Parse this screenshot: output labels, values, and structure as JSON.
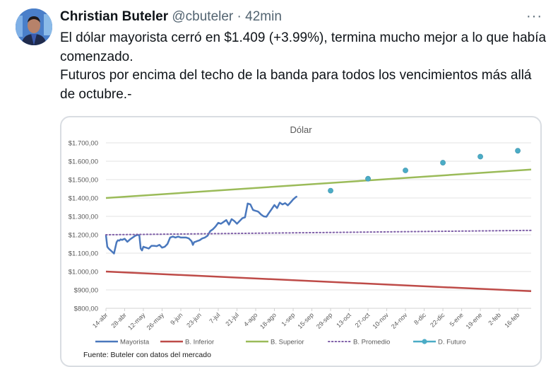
{
  "tweet": {
    "author_name": "Christian Buteler",
    "handle": "@cbuteler",
    "separator": "·",
    "time": "42min",
    "more_label": "···",
    "text_lines": [
      "El dólar mayorista cerró en $1.409 (+3.99%), termina mucho mejor a lo que había comenzado.",
      "Futuros por encima del techo de la banda para todos los vencimientos más allá de octubre.-"
    ]
  },
  "chart_data": {
    "type": "line",
    "title": "Dólar",
    "source": "Fuente: Buteler con datos del mercado",
    "xlabel": "",
    "ylabel": "",
    "ylim": [
      800,
      1700
    ],
    "yticks": [
      800,
      900,
      1000,
      1100,
      1200,
      1300,
      1400,
      1500,
      1600,
      1700
    ],
    "ytick_labels": [
      "$800,00",
      "$900,00",
      "$1.000,00",
      "$1.100,00",
      "$1.200,00",
      "$1.300,00",
      "$1.400,00",
      "$1.500,00",
      "$1.600,00",
      "$1.700,00"
    ],
    "x_unit": "days since 14-abr",
    "xlim": [
      0,
      318
    ],
    "xticks": [
      0,
      14,
      28,
      42,
      56,
      70,
      84,
      98,
      112,
      126,
      140,
      154,
      168,
      182,
      196,
      210,
      224,
      238,
      252,
      266,
      280,
      294,
      308
    ],
    "xtick_labels": [
      "14-abr",
      "28-abr",
      "12-may",
      "26-may",
      "9-jun",
      "23-jun",
      "7-jul",
      "21-jul",
      "4-ago",
      "18-ago",
      "1-sep",
      "15-sep",
      "29-sep",
      "13-oct",
      "27-oct",
      "10-nov",
      "24-nov",
      "8-dic",
      "22-dic",
      "5-ene",
      "19-ene",
      "2-feb",
      "16-feb"
    ],
    "grid": true,
    "legend_position": "bottom",
    "series": [
      {
        "name": "Mayorista",
        "color": "#4a78bd",
        "style": "solid",
        "x": [
          0,
          1,
          2,
          4,
          6,
          8,
          9,
          10,
          11,
          12,
          14,
          16,
          17,
          18,
          20,
          22,
          24,
          25,
          26,
          27,
          28,
          29,
          30,
          32,
          34,
          36,
          38,
          40,
          42,
          44,
          46,
          48,
          50,
          52,
          54,
          56,
          58,
          60,
          62,
          64,
          65,
          66,
          67,
          68,
          70,
          72,
          74,
          76,
          78,
          80,
          82,
          84,
          86,
          88,
          90,
          92,
          94,
          96,
          98,
          100,
          102,
          104,
          106,
          108,
          110,
          112,
          113,
          114,
          116,
          118,
          120,
          122,
          124,
          126,
          128,
          130,
          132,
          134,
          136,
          138,
          140,
          142,
          143
        ],
        "y": [
          1198,
          1135,
          1125,
          1112,
          1098,
          1160,
          1170,
          1168,
          1175,
          1172,
          1178,
          1162,
          1168,
          1175,
          1185,
          1195,
          1200,
          1195,
          1125,
          1115,
          1135,
          1132,
          1130,
          1125,
          1140,
          1140,
          1138,
          1145,
          1130,
          1135,
          1150,
          1185,
          1190,
          1185,
          1190,
          1185,
          1185,
          1185,
          1180,
          1165,
          1145,
          1160,
          1162,
          1165,
          1170,
          1180,
          1185,
          1195,
          1220,
          1230,
          1245,
          1265,
          1260,
          1270,
          1280,
          1255,
          1285,
          1275,
          1260,
          1275,
          1290,
          1295,
          1370,
          1365,
          1335,
          1330,
          1328,
          1325,
          1310,
          1300,
          1298,
          1320,
          1340,
          1362,
          1345,
          1375,
          1365,
          1372,
          1360,
          1375,
          1392,
          1405,
          1409
        ]
      },
      {
        "name": "B. Inferior",
        "color": "#be4b48",
        "style": "solid",
        "x": [
          0,
          318
        ],
        "y": [
          1000,
          893
        ]
      },
      {
        "name": "B. Superior",
        "color": "#9bbb59",
        "style": "solid",
        "x": [
          0,
          318
        ],
        "y": [
          1400,
          1555
        ]
      },
      {
        "name": "B. Promedio",
        "color": "#7f5fa8",
        "style": "dotted",
        "x": [
          0,
          318
        ],
        "y": [
          1200,
          1224
        ]
      },
      {
        "name": "D. Futuro",
        "color": "#4bacc6",
        "style": "markers",
        "x": [
          168,
          196,
          224,
          252,
          280,
          308
        ],
        "y": [
          1440,
          1505,
          1550,
          1592,
          1625,
          1657
        ]
      }
    ]
  }
}
